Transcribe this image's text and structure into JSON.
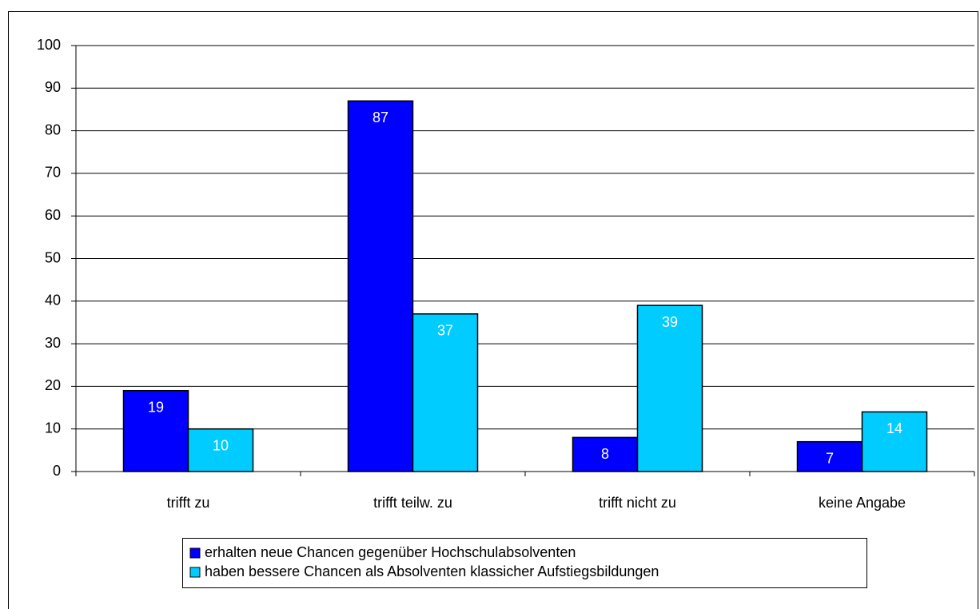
{
  "chart_data": {
    "type": "bar",
    "categories": [
      "trifft zu",
      "trifft teilw. zu",
      "trifft nicht zu",
      "keine Angabe"
    ],
    "series": [
      {
        "name": "erhalten neue Chancen gegenüber Hochschulabsolventen",
        "color": "#0000ff",
        "values": [
          19,
          87,
          8,
          7
        ]
      },
      {
        "name": "haben bessere Chancen als Absolventen klassicher Aufstiegsbildungen",
        "color": "#00ccff",
        "values": [
          10,
          37,
          39,
          14
        ]
      }
    ],
    "ylim": [
      0,
      100
    ],
    "yticks": [
      0,
      10,
      20,
      30,
      40,
      50,
      60,
      70,
      80,
      90,
      100
    ],
    "grid": true,
    "legend": "bottom"
  }
}
